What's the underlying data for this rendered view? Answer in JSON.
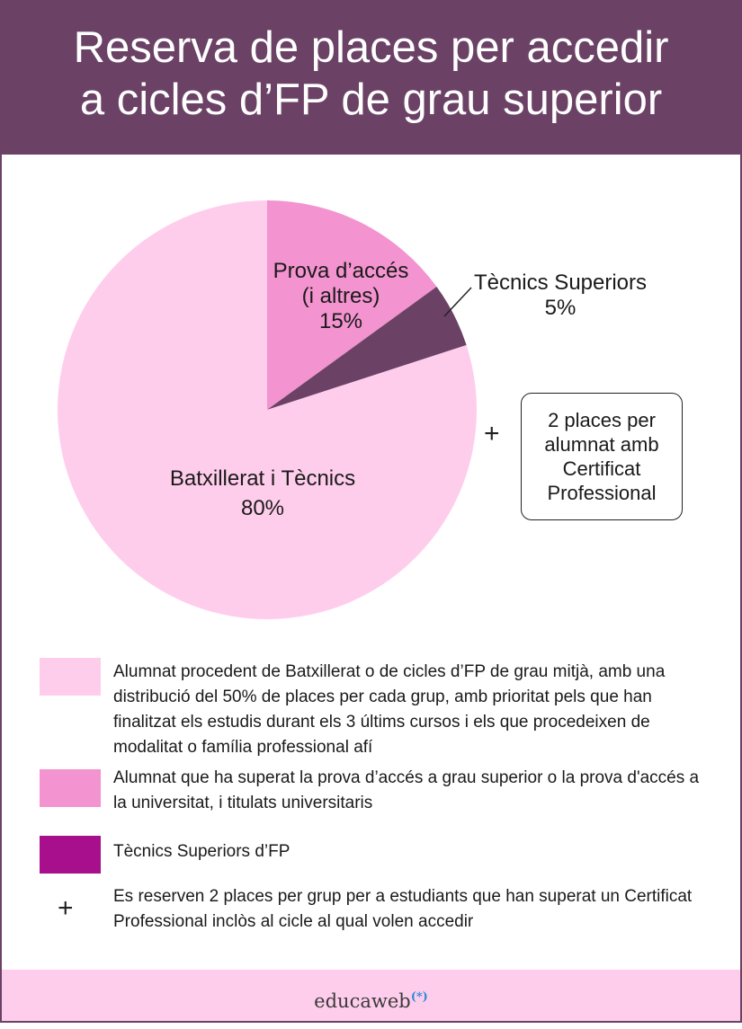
{
  "header": {
    "title_line1": "Reserva de places per accedir",
    "title_line2": "a cicles d’FP de grau superior"
  },
  "chart_data": {
    "type": "pie",
    "title": "Reserva de places per accedir a cicles d’FP de grau superior",
    "slices": [
      {
        "line1": "Batxillerat i Tècnics",
        "line2": "",
        "value": 80,
        "value_label": "80%",
        "color": "#ffcdec"
      },
      {
        "line1": "Prova d’accés",
        "line2": "(i altres)",
        "value": 15,
        "value_label": "15%",
        "color": "#f393cf"
      },
      {
        "line1": "Tècnics Superiors",
        "line2": "",
        "value": 5,
        "value_label": "5%",
        "color": "#6b4266"
      }
    ],
    "extra": {
      "symbol": "+",
      "lines": [
        "2 places per",
        "alumnat amb",
        "Certificat",
        "Professional"
      ]
    }
  },
  "legend": {
    "items": [
      {
        "color": "#ffcdec",
        "text": "Alumnat procedent de Batxillerat o de cicles d’FP de grau mitjà, amb una distribució del 50% de places per cada grup, amb prioritat pels que han finalitzat els estudis durant els 3 últims cursos i els que procedeixen de modalitat o família professional afí"
      },
      {
        "color": "#f393cf",
        "text": "Alumnat que ha superat la prova d’accés a grau superior o la prova d'accés a la universitat, i titulats universitaris"
      },
      {
        "color": "#a80f8c",
        "text": "Tècnics Superiors d’FP"
      }
    ],
    "plus_symbol": "+",
    "plus_text": "Es reserven 2 places per grup per a estudiants que han superat un Certificat Professional inclòs al cicle al qual volen accedir"
  },
  "footer": {
    "brand": "educaweb",
    "brand_mark": "(*)"
  }
}
